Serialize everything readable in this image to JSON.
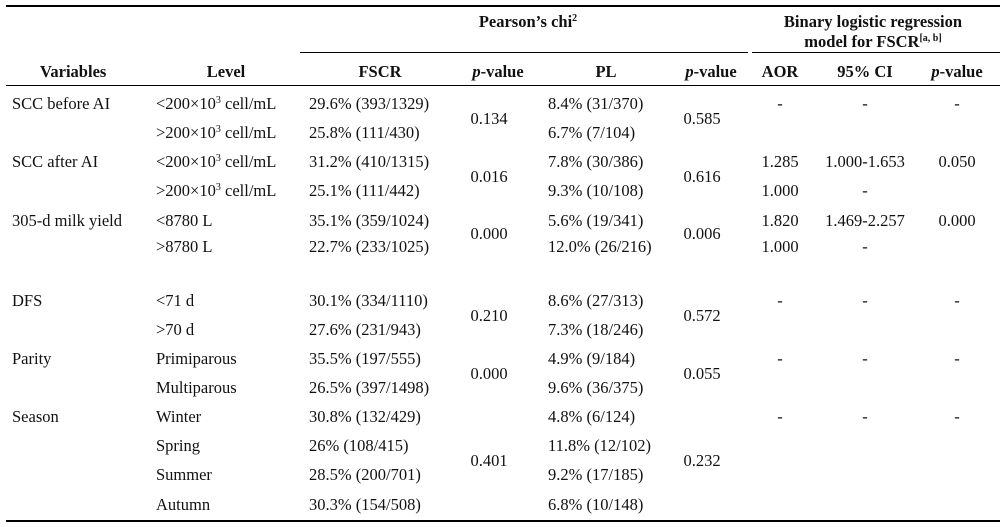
{
  "header": {
    "group_chi": "Pearson’s chi",
    "group_chi_sup": "2",
    "group_reg_line1": "Binary logistic regression",
    "group_reg_line2": "model for FSCR",
    "group_reg_sup": "[a, b]",
    "col_variables": "Variables",
    "col_level": "Level",
    "col_fscr": "FSCR",
    "col_p1_italic": "p",
    "col_p1_rest": "-value",
    "col_pl": "PL",
    "col_p2_italic": "p",
    "col_p2_rest": "-value",
    "col_aor": "AOR",
    "col_ci": "95% CI",
    "col_p3_italic": "p",
    "col_p3_rest": "-value"
  },
  "rows": [
    {
      "variable": "SCC before AI",
      "levels": [
        {
          "level_pre": "<200×10",
          "level_sup": "3",
          "level_post": " cell/mL",
          "fscr": "29.6% (393/1329)",
          "pl": "8.4% (31/370)",
          "aor": "-",
          "ci": "-",
          "p3": "-"
        },
        {
          "level_pre": ">200×10",
          "level_sup": "3",
          "level_post": " cell/mL",
          "fscr": "25.8% (111/430)",
          "pl": "6.7% (7/104)",
          "aor": "",
          "ci": "",
          "p3": ""
        }
      ],
      "p1": "0.134",
      "p2": "0.585"
    },
    {
      "variable": "SCC after AI",
      "levels": [
        {
          "level_pre": "<200×10",
          "level_sup": "3",
          "level_post": " cell/mL",
          "fscr": "31.2% (410/1315)",
          "pl": "7.8% (30/386)",
          "aor": "1.285",
          "ci": "1.000-1.653",
          "p3": "0.050"
        },
        {
          "level_pre": ">200×10",
          "level_sup": "3",
          "level_post": " cell/mL",
          "fscr": "25.1% (111/442)",
          "pl": "9.3% (10/108)",
          "aor": "1.000",
          "ci": "-",
          "p3": ""
        }
      ],
      "p1": "0.016",
      "p2": "0.616"
    },
    {
      "variable": "305-d milk yield",
      "levels": [
        {
          "level_pre": "<8780 L",
          "level_sup": "",
          "level_post": "",
          "fscr": "35.1% (359/1024)",
          "pl": "5.6% (19/341)",
          "aor": "1.820",
          "ci": "1.469-2.257",
          "p3": "0.000"
        },
        {
          "level_pre": ">8780 L",
          "level_sup": "",
          "level_post": "",
          "fscr": "22.7% (233/1025)",
          "pl": "12.0% (26/216)",
          "aor": "1.000",
          "ci": "-",
          "p3": ""
        }
      ],
      "p1": "0.000",
      "p2": "0.006"
    },
    {
      "variable": "DFS",
      "levels": [
        {
          "level_pre": "<71 d",
          "level_sup": "",
          "level_post": "",
          "fscr": "30.1% (334/1110)",
          "pl": "8.6% (27/313)",
          "aor": "-",
          "ci": "-",
          "p3": "-"
        },
        {
          "level_pre": ">70 d",
          "level_sup": "",
          "level_post": "",
          "fscr": "27.6% (231/943)",
          "pl": "7.3% (18/246)",
          "aor": "",
          "ci": "",
          "p3": ""
        }
      ],
      "p1": "0.210",
      "p2": "0.572"
    },
    {
      "variable": "Parity",
      "levels": [
        {
          "level_pre": "Primiparous",
          "level_sup": "",
          "level_post": "",
          "fscr": "35.5% (197/555)",
          "pl": "4.9% (9/184)",
          "aor": "-",
          "ci": "-",
          "p3": "-"
        },
        {
          "level_pre": "Multiparous",
          "level_sup": "",
          "level_post": "",
          "fscr": "26.5% (397/1498)",
          "pl": "9.6% (36/375)",
          "aor": "",
          "ci": "",
          "p3": ""
        }
      ],
      "p1": "0.000",
      "p2": "0.055"
    },
    {
      "variable": "Season",
      "levels": [
        {
          "level_pre": "Winter",
          "level_sup": "",
          "level_post": "",
          "fscr": "30.8% (132/429)",
          "pl": "4.8% (6/124)",
          "aor": "-",
          "ci": "-",
          "p3": "-"
        },
        {
          "level_pre": "Spring",
          "level_sup": "",
          "level_post": "",
          "fscr": "26% (108/415)",
          "pl": "11.8% (12/102)",
          "aor": "",
          "ci": "",
          "p3": ""
        },
        {
          "level_pre": "Summer",
          "level_sup": "",
          "level_post": "",
          "fscr": "28.5% (200/701)",
          "pl": "9.2% (17/185)",
          "aor": "",
          "ci": "",
          "p3": ""
        },
        {
          "level_pre": "Autumn",
          "level_sup": "",
          "level_post": "",
          "fscr": "30.3% (154/508)",
          "pl": "6.8% (10/148)",
          "aor": "",
          "ci": "",
          "p3": ""
        }
      ],
      "p1": "0.401",
      "p2": "0.232"
    }
  ]
}
